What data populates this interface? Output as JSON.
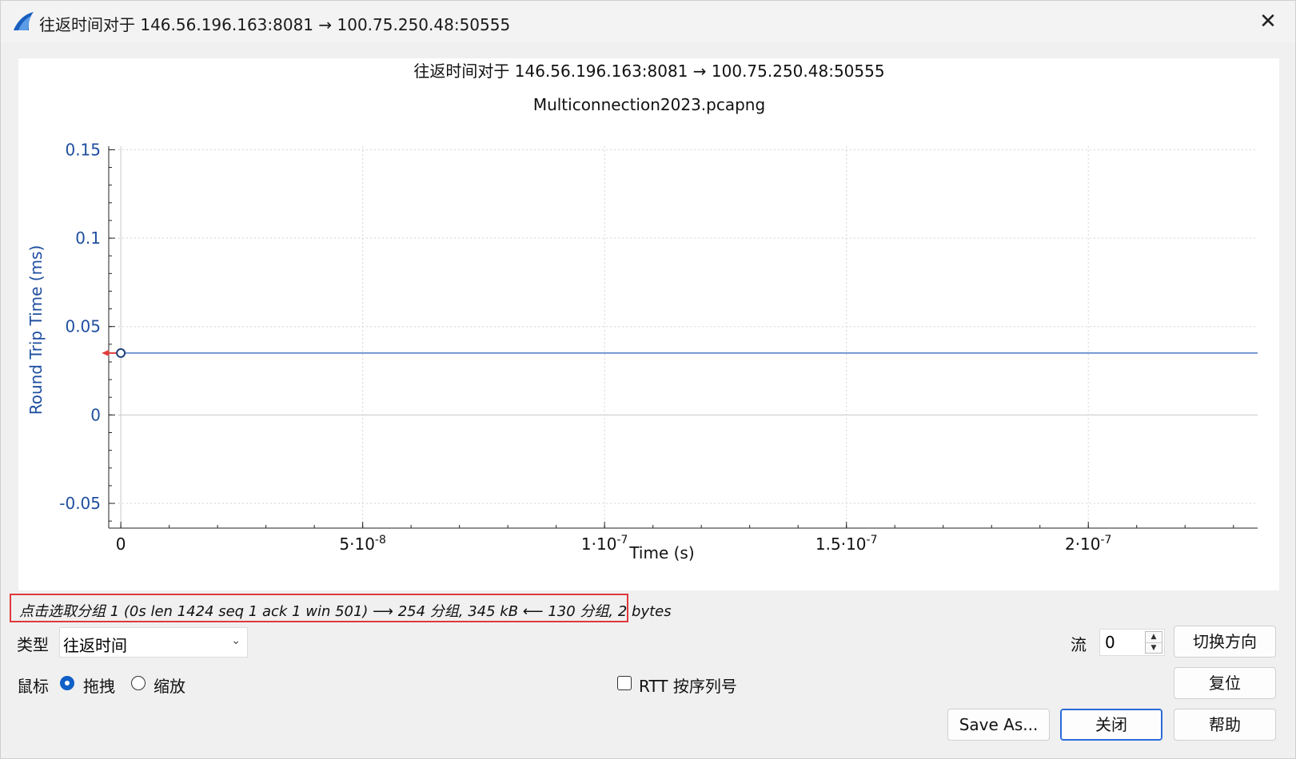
{
  "window": {
    "title": "往返时间对于 146.56.196.163:8081 → 100.75.250.48:50555",
    "close_glyph": "✕"
  },
  "chart_data": {
    "type": "line",
    "title": "往返时间对于 146.56.196.163:8081 → 100.75.250.48:50555",
    "subtitle": "Multiconnection2023.pcapng",
    "xlabel": "Time (s)",
    "ylabel": "Round Trip Time (ms)",
    "xlim": [
      -2.5e-09,
      2.35e-07
    ],
    "ylim": [
      -0.064,
      0.152
    ],
    "x_ticks": [
      {
        "value": 0,
        "base": "0",
        "exp": ""
      },
      {
        "value": 5e-08,
        "base": "5·10",
        "exp": "-8"
      },
      {
        "value": 1e-07,
        "base": "1·10",
        "exp": "-7"
      },
      {
        "value": 1.5e-07,
        "base": "1.5·10",
        "exp": "-7"
      },
      {
        "value": 2e-07,
        "base": "2·10",
        "exp": "-7"
      }
    ],
    "y_ticks": [
      {
        "value": 0.15,
        "label": "0.15"
      },
      {
        "value": 0.1,
        "label": "0.1"
      },
      {
        "value": 0.05,
        "label": "0.05"
      },
      {
        "value": 0,
        "label": "0"
      },
      {
        "value": -0.05,
        "label": "-0.05"
      }
    ],
    "series": [
      {
        "x": [
          0,
          2.35e-07
        ],
        "y": [
          0.035,
          0.035
        ]
      }
    ],
    "selected_point": {
      "x": 0,
      "y": 0.035
    },
    "grid": true,
    "colors": {
      "axis_text": "#1f4fa0",
      "line": "#4a78c0",
      "marker": "#1f3f78",
      "arrow": "#e23c3c"
    }
  },
  "status": {
    "text": "点击选取分组 1 (0s len 1424 seq 1 ack 1 win 501) ⟶ 254 分组, 345 kB ⟵ 130 分组, 2 bytes"
  },
  "controls": {
    "type_label": "类型",
    "type_value": "往返时间",
    "stream_label": "流",
    "stream_value": "0",
    "switch_direction": "切换方向",
    "mouse_label": "鼠标",
    "drag_label": "拖拽",
    "zoom_label": "缩放",
    "rtt_label": "RTT 按序列号",
    "reset": "复位",
    "save_as": "Save As...",
    "close": "关闭",
    "help": "帮助"
  }
}
